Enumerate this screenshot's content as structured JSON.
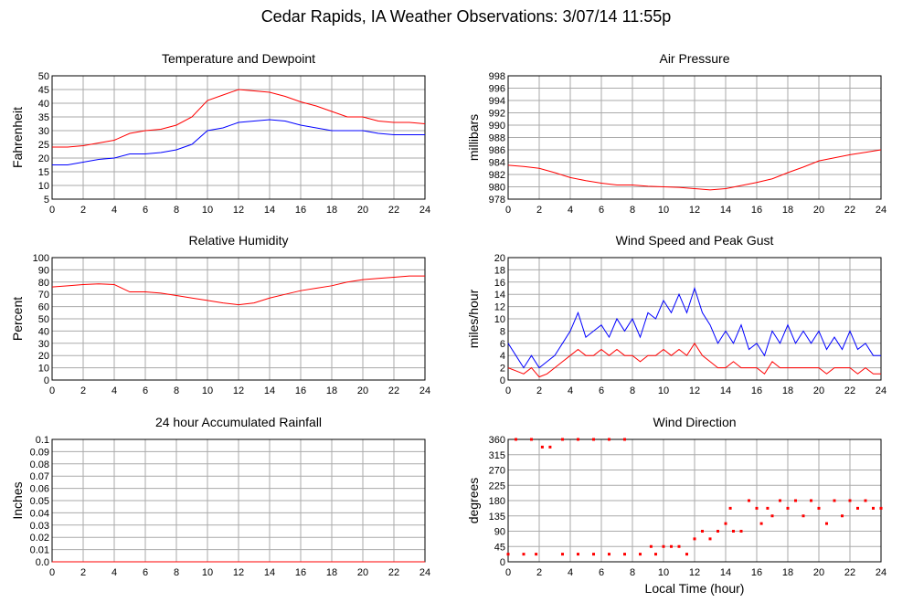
{
  "title": "Cedar Rapids, IA Weather Observations: 3/07/14 11:55p",
  "chart_data": [
    {
      "type": "line",
      "title": "Temperature and Dewpoint",
      "ylabel": "Fahrenheit",
      "x": [
        0,
        1,
        2,
        3,
        4,
        5,
        6,
        7,
        8,
        9,
        10,
        11,
        12,
        13,
        14,
        15,
        16,
        17,
        18,
        19,
        20,
        21,
        22,
        23,
        24
      ],
      "series": [
        {
          "name": "Temperature",
          "color": "#ff0000",
          "values": [
            24,
            24,
            24.5,
            25.5,
            26.5,
            29,
            30,
            30.5,
            32,
            35,
            41,
            43,
            45,
            44.5,
            44,
            42.5,
            40.5,
            39,
            37,
            35,
            35,
            33.5,
            33,
            33,
            32.5
          ]
        },
        {
          "name": "Dewpoint",
          "color": "#0000ff",
          "values": [
            17.5,
            17.5,
            18.5,
            19.5,
            20,
            21.5,
            21.5,
            22,
            23,
            25,
            30,
            31,
            33,
            33.5,
            34,
            33.5,
            32,
            31,
            30,
            30,
            30,
            29,
            28.5,
            28.5,
            28.5
          ]
        }
      ],
      "xlim": [
        0,
        24
      ],
      "ylim": [
        5,
        50
      ],
      "xticks": [
        0,
        2,
        4,
        6,
        8,
        10,
        12,
        14,
        16,
        18,
        20,
        22,
        24
      ],
      "yticks": [
        5,
        10,
        15,
        20,
        25,
        30,
        35,
        40,
        45,
        50
      ],
      "grid": true
    },
    {
      "type": "line",
      "title": "Air Pressure",
      "ylabel": "millibars",
      "x": [
        0,
        1,
        2,
        3,
        4,
        5,
        6,
        7,
        8,
        9,
        10,
        11,
        12,
        13,
        14,
        15,
        16,
        17,
        18,
        19,
        20,
        21,
        22,
        23,
        24
      ],
      "series": [
        {
          "name": "Pressure",
          "color": "#ff0000",
          "values": [
            983.5,
            983.3,
            983,
            982.3,
            981.5,
            981,
            980.6,
            980.3,
            980.3,
            980.1,
            980,
            979.9,
            979.7,
            979.5,
            979.7,
            980.2,
            980.7,
            981.3,
            982.3,
            983.2,
            984.2,
            984.7,
            985.2,
            985.6,
            986
          ]
        }
      ],
      "xlim": [
        0,
        24
      ],
      "ylim": [
        978,
        998
      ],
      "xticks": [
        0,
        2,
        4,
        6,
        8,
        10,
        12,
        14,
        16,
        18,
        20,
        22,
        24
      ],
      "yticks": [
        978,
        980,
        982,
        984,
        986,
        988,
        990,
        992,
        994,
        996,
        998
      ],
      "grid": true
    },
    {
      "type": "line",
      "title": "Relative Humidity",
      "ylabel": "Percent",
      "x": [
        0,
        1,
        2,
        3,
        4,
        5,
        6,
        7,
        8,
        9,
        10,
        11,
        12,
        13,
        14,
        15,
        16,
        17,
        18,
        19,
        20,
        21,
        22,
        23,
        24
      ],
      "series": [
        {
          "name": "Humidity",
          "color": "#ff0000",
          "values": [
            76,
            77,
            78,
            78.5,
            78,
            72,
            72,
            71,
            69,
            67,
            65,
            63,
            61.5,
            63,
            67,
            70,
            73,
            75,
            77,
            80,
            82,
            83,
            84,
            85,
            85
          ]
        }
      ],
      "xlim": [
        0,
        24
      ],
      "ylim": [
        0,
        100
      ],
      "xticks": [
        0,
        2,
        4,
        6,
        8,
        10,
        12,
        14,
        16,
        18,
        20,
        22,
        24
      ],
      "yticks": [
        0,
        10,
        20,
        30,
        40,
        50,
        60,
        70,
        80,
        90,
        100
      ],
      "grid": true
    },
    {
      "type": "line",
      "title": "Wind Speed and Peak Gust",
      "ylabel": "miles/hour",
      "x": [
        0,
        0.5,
        1,
        1.5,
        2,
        2.5,
        3,
        3.5,
        4,
        4.5,
        5,
        5.5,
        6,
        6.5,
        7,
        7.5,
        8,
        8.5,
        9,
        9.5,
        10,
        10.5,
        11,
        11.5,
        12,
        12.5,
        13,
        13.5,
        14,
        14.5,
        15,
        15.5,
        16,
        16.5,
        17,
        17.5,
        18,
        18.5,
        19,
        19.5,
        20,
        20.5,
        21,
        21.5,
        22,
        22.5,
        23,
        23.5,
        24
      ],
      "series": [
        {
          "name": "Peak Gust",
          "color": "#0000ff",
          "values": [
            6,
            4,
            2,
            4,
            2,
            3,
            4,
            6,
            8,
            11,
            7,
            8,
            9,
            7,
            10,
            8,
            10,
            7,
            11,
            10,
            13,
            11,
            14,
            11,
            15,
            11,
            9,
            6,
            8,
            6,
            9,
            5,
            6,
            4,
            8,
            6,
            9,
            6,
            8,
            6,
            8,
            5,
            7,
            5,
            8,
            5,
            6,
            4,
            4
          ]
        },
        {
          "name": "Wind Speed",
          "color": "#ff0000",
          "values": [
            2,
            1.5,
            1,
            2,
            0.5,
            1,
            2,
            3,
            4,
            5,
            4,
            4,
            5,
            4,
            5,
            4,
            4,
            3,
            4,
            4,
            5,
            4,
            5,
            4,
            6,
            4,
            3,
            2,
            2,
            3,
            2,
            2,
            2,
            1,
            3,
            2,
            2,
            2,
            2,
            2,
            2,
            1,
            2,
            2,
            2,
            1,
            2,
            1,
            1
          ]
        }
      ],
      "xlim": [
        0,
        24
      ],
      "ylim": [
        0,
        20
      ],
      "xticks": [
        0,
        2,
        4,
        6,
        8,
        10,
        12,
        14,
        16,
        18,
        20,
        22,
        24
      ],
      "yticks": [
        0,
        2,
        4,
        6,
        8,
        10,
        12,
        14,
        16,
        18,
        20
      ],
      "grid": true
    },
    {
      "type": "line",
      "title": "24 hour Accumulated Rainfall",
      "ylabel": "Inches",
      "x": [
        0,
        24
      ],
      "series": [
        {
          "name": "Rainfall",
          "color": "#ff0000",
          "values": [
            0,
            0
          ]
        }
      ],
      "xlim": [
        0,
        24
      ],
      "ylim": [
        0,
        0.1
      ],
      "xticks": [
        0,
        2,
        4,
        6,
        8,
        10,
        12,
        14,
        16,
        18,
        20,
        22,
        24
      ],
      "yticks": [
        {
          "value": 0,
          "label": "0.0"
        },
        0.01,
        0.02,
        0.03,
        0.04,
        0.05,
        0.06,
        0.07,
        0.08,
        0.09,
        {
          "value": 0.1,
          "label": "0.1"
        }
      ],
      "grid": true
    },
    {
      "type": "scatter",
      "title": "Wind Direction",
      "ylabel": "degrees",
      "xlabel": "Local Time (hour)",
      "x": [
        0,
        0.5,
        1,
        1.5,
        1.8,
        2.2,
        2.7,
        3.5,
        3.5,
        4.5,
        4.5,
        5.5,
        5.5,
        6.5,
        6.5,
        7.5,
        7.5,
        8.5,
        9.2,
        9.5,
        10,
        10.5,
        11,
        11.5,
        12,
        12.5,
        13,
        13.5,
        14,
        14.3,
        14.5,
        15,
        15.5,
        16,
        16.3,
        16.7,
        17,
        17.5,
        18,
        18.5,
        19,
        19.5,
        20,
        20.5,
        21,
        21.5,
        22,
        22.5,
        23,
        23.5,
        24
      ],
      "series": [
        {
          "name": "Direction",
          "color": "#ff0000",
          "values": [
            22.5,
            360,
            22.5,
            360,
            22.5,
            337.5,
            337.5,
            22.5,
            360,
            360,
            22.5,
            360,
            22.5,
            360,
            22.5,
            360,
            22.5,
            22.5,
            45,
            22.5,
            45,
            45,
            45,
            22.5,
            67.5,
            90,
            67.5,
            90,
            112.5,
            157.5,
            90,
            90,
            180,
            157.5,
            112.5,
            157.5,
            135,
            180,
            157.5,
            180,
            135,
            180,
            157.5,
            112.5,
            180,
            135,
            180,
            157.5,
            180,
            157.5,
            157.5
          ]
        }
      ],
      "xlim": [
        0,
        24
      ],
      "ylim": [
        0,
        360
      ],
      "xticks": [
        0,
        2,
        4,
        6,
        8,
        10,
        12,
        14,
        16,
        18,
        20,
        22,
        24
      ],
      "yticks": [
        0,
        45,
        90,
        135,
        180,
        225,
        270,
        315,
        360
      ],
      "grid": true
    }
  ]
}
